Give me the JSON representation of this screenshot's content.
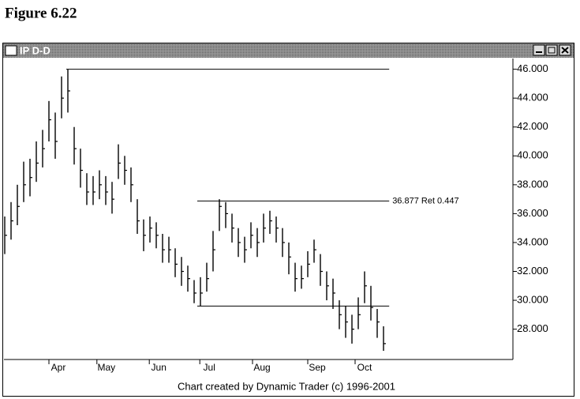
{
  "figure_title": "Figure 6.22",
  "window_title": "IP D-D",
  "footer": "Chart created by Dynamic Trader (c) 1996-2001",
  "chart_data": {
    "type": "ohlc",
    "color": "#000000",
    "xlim": [
      -0.125,
      80.5
    ],
    "ylim": [
      25.9,
      46.8
    ],
    "yticks": [
      {
        "value": 28,
        "label": "28.000"
      },
      {
        "value": 30,
        "label": "30.000"
      },
      {
        "value": 32,
        "label": "32.000"
      },
      {
        "value": 34,
        "label": "34.000"
      },
      {
        "value": 36,
        "label": "36.000"
      },
      {
        "value": 38,
        "label": "38.000"
      },
      {
        "value": 40,
        "label": "40.000"
      },
      {
        "value": 42,
        "label": "42.000"
      },
      {
        "value": 44,
        "label": "44.000"
      },
      {
        "value": 46,
        "label": "46.000"
      }
    ],
    "xticks": [
      {
        "value": 8.5,
        "label": "Apr"
      },
      {
        "value": 16.1,
        "label": "May"
      },
      {
        "value": 24.4,
        "label": "Jun"
      },
      {
        "value": 32.4,
        "label": "Jul"
      },
      {
        "value": 40.75,
        "label": "Aug"
      },
      {
        "value": 49.5,
        "label": "Sep"
      },
      {
        "value": 57,
        "label": "Oct"
      }
    ],
    "highs": [
      35.8,
      36.8,
      38,
      39.6,
      39.8,
      41,
      41.8,
      43.8,
      43,
      45.5,
      46,
      42,
      40.5,
      38.8,
      38.6,
      39,
      38.6,
      38.2,
      40.8,
      40,
      39.2,
      37,
      35.6,
      35.8,
      35.4,
      34.6,
      34.4,
      33.6,
      33,
      32.4,
      31.4,
      31.6,
      32.6,
      34.8,
      37,
      36.8,
      36,
      35,
      34.4,
      35.4,
      35,
      36,
      36.2,
      35.8,
      35,
      34,
      32.6,
      32.4,
      33.4,
      34.2,
      33.2,
      32,
      31.5,
      30,
      29.6,
      29,
      30.2,
      32,
      31,
      29.4,
      28.2
    ],
    "lows": [
      33.2,
      34.2,
      35.2,
      36.8,
      37.2,
      38.2,
      39.2,
      41,
      39.8,
      42.6,
      43,
      39.4,
      37.8,
      36.6,
      36.6,
      37,
      36.6,
      36,
      38.4,
      38,
      36.8,
      34.6,
      33.4,
      34,
      33.6,
      32.6,
      32.6,
      31.6,
      31,
      30.6,
      29.8,
      29.6,
      30.6,
      32,
      34.8,
      35,
      34,
      33,
      32.6,
      33.6,
      33,
      34,
      34.6,
      34,
      33,
      31.8,
      30.6,
      30.8,
      31.6,
      32.6,
      31,
      30,
      29.4,
      28,
      27.4,
      27,
      28,
      29.8,
      28.6,
      27.4,
      26.5
    ],
    "closes": [
      34.5,
      35.5,
      36.5,
      38,
      38.5,
      39.5,
      40.5,
      42.5,
      41,
      44,
      44.5,
      40.5,
      39,
      37.5,
      37.5,
      38,
      37.5,
      37,
      39.5,
      39,
      38,
      35.5,
      34.5,
      35,
      34.5,
      33.5,
      33.5,
      32.5,
      32,
      31.5,
      30.5,
      30.5,
      31.5,
      33.5,
      36.5,
      36,
      35,
      34,
      33.5,
      34.5,
      34,
      35,
      35.5,
      35,
      34,
      33,
      31.5,
      31.5,
      32.5,
      33.5,
      32,
      31,
      30.5,
      29,
      28.5,
      28,
      29,
      31,
      29.5,
      28.5,
      27
    ],
    "lines": [
      {
        "y": 46,
        "x": [
          9.75,
          60.9
        ]
      },
      {
        "y": 36.877,
        "x": [
          30.5,
          60.9
        ],
        "label": "36.877 Ret 0.447"
      },
      {
        "y": 29.6,
        "x": [
          30.5,
          60.9
        ]
      }
    ]
  }
}
